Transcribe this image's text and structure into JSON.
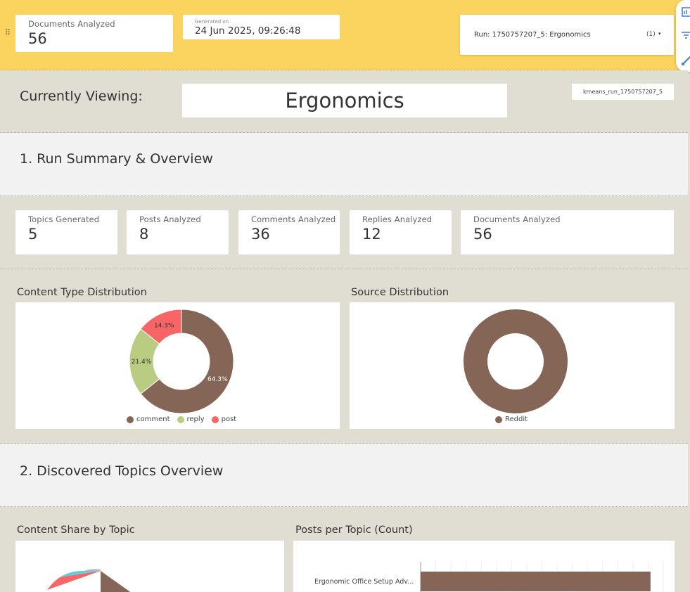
{
  "header": {
    "docs_label": "Documents Analyzed",
    "docs_value": "56",
    "generated_label": "Generated on",
    "generated_value": "24 Jun 2025, 09:26:48",
    "run_label": "Run: 1750757207_5: Ergonomics",
    "run_count": "(1)",
    "run_caret": "▾"
  },
  "viewing": {
    "label": "Currently Viewing:",
    "value": "Ergonomics",
    "run_id": "kmeans_run_1750757207_5"
  },
  "section1": {
    "title": "1. Run Summary & Overview"
  },
  "kpis": [
    {
      "label": "Topics Generated",
      "value": "5"
    },
    {
      "label": "Posts Analyzed",
      "value": "8"
    },
    {
      "label": "Comments Analyzed",
      "value": "36"
    },
    {
      "label": "Replies Analyzed",
      "value": "12"
    },
    {
      "label": "Documents Analyzed",
      "value": "56"
    }
  ],
  "section2": {
    "title": "2. Discovered Topics Overview"
  },
  "colors": {
    "brown": "#856555",
    "green": "#b9cc82",
    "red": "#f76566",
    "teal": "#64ccd9",
    "lilac": "#c4b1c8",
    "header": "#fbd35f"
  },
  "chart_data": [
    {
      "type": "pie",
      "title": "Content Type Distribution",
      "categories": [
        "comment",
        "reply",
        "post"
      ],
      "values": [
        64.3,
        21.4,
        14.3
      ],
      "labels": [
        "64.3%",
        "21.4%",
        "14.3%"
      ],
      "legend_position": "bottom"
    },
    {
      "type": "pie",
      "title": "Source Distribution",
      "categories": [
        "Reddit"
      ],
      "values": [
        100
      ],
      "labels": [
        ""
      ],
      "legend_position": "bottom"
    },
    {
      "type": "pie",
      "title": "Content Share by Topic"
    },
    {
      "type": "bar",
      "title": "Posts per Topic (Count)",
      "categories": [
        "Ergonomic Office Setup Adv..."
      ],
      "values": [
        36
      ],
      "orientation": "horizontal"
    }
  ]
}
